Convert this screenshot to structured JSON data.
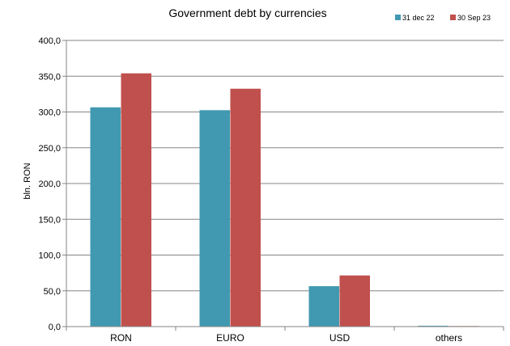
{
  "chart_data": {
    "type": "bar",
    "title": "Government debt by currencies",
    "xlabel": "",
    "ylabel": "bln. RON",
    "ylim": [
      0,
      400
    ],
    "ytick_step": 50,
    "ytick_labels": [
      "0,0",
      "50,0",
      "100,0",
      "150,0",
      "200,0",
      "250,0",
      "300,0",
      "350,0",
      "400,0"
    ],
    "grid": true,
    "legend_position": "top-right",
    "categories": [
      "RON",
      "EURO",
      "USD",
      "others"
    ],
    "series": [
      {
        "name": "31 dec 22",
        "color": "#4199B1",
        "values": [
          306.5,
          302.5,
          56.5,
          1.2
        ]
      },
      {
        "name": "30 Sep 23",
        "color": "#C0504D",
        "values": [
          354.0,
          332.5,
          71.5,
          0.8
        ]
      }
    ]
  }
}
